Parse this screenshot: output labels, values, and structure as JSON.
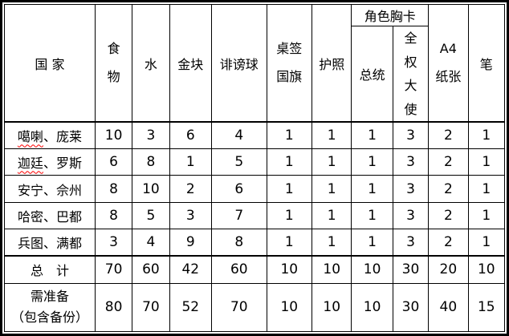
{
  "table": {
    "misspell_color": "#ff0000",
    "header": {
      "country": "国 家",
      "food": "食\n物",
      "water": "水",
      "gold_nugget": "金块",
      "slander_ball": "诽谤球",
      "desk_flag": "桌签\n国旗",
      "passport": "护照",
      "role_badge": "角色胸卡",
      "president": "总统",
      "ambassador": "全\n权\n大\n使",
      "a4_paper": "A4\n纸张",
      "pen": "笔"
    },
    "body_rows": [
      {
        "marked": "噶喇",
        "rest": "、庞莱",
        "values": [
          10,
          3,
          6,
          4,
          1,
          1,
          1,
          3,
          2,
          1
        ]
      },
      {
        "marked": "迦廷",
        "rest": "、罗斯",
        "values": [
          6,
          8,
          1,
          5,
          1,
          1,
          1,
          3,
          2,
          1
        ]
      },
      {
        "marked": "",
        "rest": "安宁、佘州",
        "values": [
          8,
          10,
          2,
          6,
          1,
          1,
          1,
          3,
          2,
          1
        ]
      },
      {
        "marked": "",
        "rest": "哈密、巴都",
        "values": [
          8,
          5,
          3,
          7,
          1,
          1,
          1,
          3,
          2,
          1
        ]
      },
      {
        "marked": "",
        "rest": "兵图、满都",
        "values": [
          3,
          4,
          9,
          8,
          1,
          1,
          1,
          3,
          2,
          1
        ]
      }
    ],
    "total_row": {
      "label": "总　计",
      "values": [
        70,
        60,
        42,
        60,
        10,
        10,
        10,
        30,
        20,
        10
      ]
    },
    "prepare_row": {
      "label": "需准备\n（包含备份）",
      "values": [
        80,
        70,
        52,
        70,
        10,
        10,
        10,
        30,
        40,
        15
      ]
    }
  }
}
